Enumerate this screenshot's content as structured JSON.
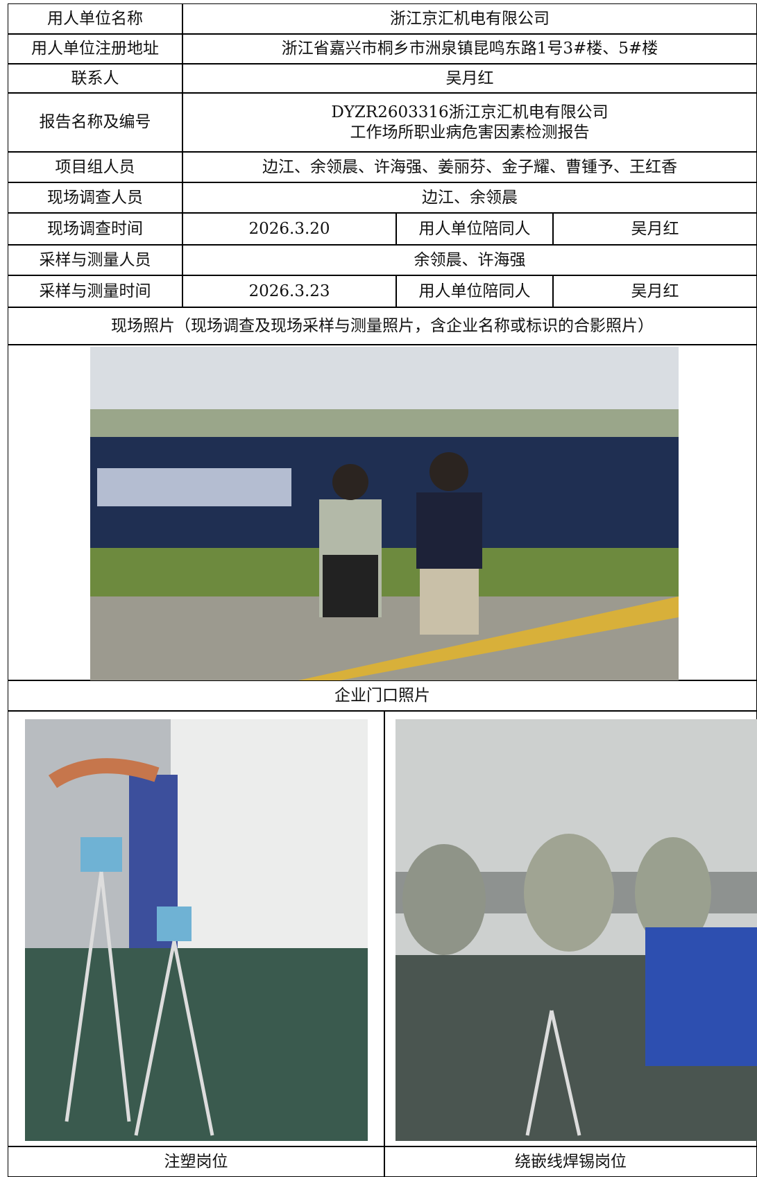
{
  "table": {
    "rows": [
      {
        "label": "用人单位名称",
        "value": "浙江京汇机电有限公司"
      },
      {
        "label": "用人单位注册地址",
        "value": "浙江省嘉兴市桐乡市洲泉镇昆鸣东路1号3#楼、5#楼"
      },
      {
        "label": "联系人",
        "value": "吴月红"
      },
      {
        "label": "报告名称及编号",
        "value": [
          "DYZR2603316浙江京汇机电有限公司",
          "工作场所职业病危害因素检测报告"
        ]
      },
      {
        "label": "项目组人员",
        "value": "边江、余领晨、许海强、姜丽芬、金子耀、曹锺予、王红香"
      },
      {
        "label": "现场调查人员",
        "value": "边江、余领晨"
      },
      {
        "label": "现场调查时间",
        "value": "2026.3.20",
        "label2": "用人单位陪同人",
        "value2": "吴月红"
      },
      {
        "label": "采样与测量人员",
        "value": "余领晨、许海强"
      },
      {
        "label": "采样与测量时间",
        "value": "2026.3.23",
        "label2": "用人单位陪同人",
        "value2": "吴月红"
      }
    ]
  },
  "photo_section": {
    "heading": "现场照片（现场调查及现场采样与测量照片，含企业名称或标识的合影照片）",
    "photos": [
      {
        "caption": "企业门口照片"
      },
      {
        "caption": "注塑岗位"
      },
      {
        "caption": "绕嵌线焊锡岗位"
      }
    ]
  }
}
